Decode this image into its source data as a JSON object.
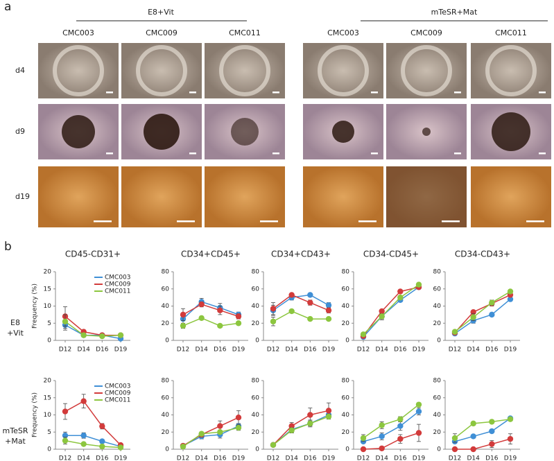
{
  "panel_a": {
    "label": "a",
    "groups": [
      "E8+Vit",
      "mTeSR+Mat"
    ],
    "columns": [
      "CMC003",
      "CMC009",
      "CMC011",
      "CMC003",
      "CMC009",
      "CMC011"
    ],
    "rows": [
      "d4",
      "d9",
      "d19"
    ]
  },
  "panel_b": {
    "label": "b",
    "row_labels": [
      [
        "E8",
        "+Vit"
      ],
      [
        "mTeSR",
        "+Mat"
      ]
    ]
  },
  "chart_data": [
    {
      "type": "line",
      "title": "CD45-CD31+",
      "ylabel": "Frequency (%)",
      "legend": "upper right",
      "categories": [
        "D12",
        "D14",
        "D16",
        "D19"
      ],
      "ylim": [
        0,
        20
      ],
      "yticks": [
        0,
        5,
        10,
        15,
        20
      ],
      "series": [
        {
          "name": "CMC003",
          "color": "#3f8fd6",
          "values": [
            4.5,
            1.5,
            1.5,
            0.5
          ],
          "errors": [
            1.5,
            0.4,
            0.3,
            0.3
          ]
        },
        {
          "name": "CMC009",
          "color": "#d23b3b",
          "values": [
            7,
            2.5,
            1.5,
            1.5
          ],
          "errors": [
            2.8,
            0.5,
            0.3,
            0.3
          ]
        },
        {
          "name": "CMC011",
          "color": "#8cc63f",
          "values": [
            5.5,
            1.5,
            1.2,
            1.5
          ],
          "errors": [
            2,
            0.3,
            0.3,
            0.3
          ]
        }
      ]
    },
    {
      "type": "line",
      "title": "CD34+CD45+",
      "categories": [
        "D12",
        "D14",
        "D16",
        "D19"
      ],
      "ylim": [
        0,
        80
      ],
      "yticks": [
        0,
        20,
        40,
        60,
        80
      ],
      "series": [
        {
          "color": "#3f8fd6",
          "values": [
            25,
            45,
            38,
            30
          ],
          "errors": [
            6,
            4,
            5,
            3
          ]
        },
        {
          "color": "#d23b3b",
          "values": [
            30,
            42,
            35,
            28
          ],
          "errors": [
            7,
            3,
            5,
            3
          ]
        },
        {
          "color": "#8cc63f",
          "values": [
            17,
            26,
            17,
            20
          ],
          "errors": [
            3,
            2,
            2,
            2
          ]
        }
      ]
    },
    {
      "type": "line",
      "title": "CD34+CD43+",
      "categories": [
        "D12",
        "D14",
        "D16",
        "D19"
      ],
      "ylim": [
        0,
        80
      ],
      "yticks": [
        0,
        20,
        40,
        60,
        80
      ],
      "series": [
        {
          "color": "#3f8fd6",
          "values": [
            35,
            50,
            53,
            41
          ],
          "errors": [
            6,
            3,
            2,
            3
          ]
        },
        {
          "color": "#d23b3b",
          "values": [
            37,
            53,
            44,
            35
          ],
          "errors": [
            7,
            2,
            3,
            3
          ]
        },
        {
          "color": "#8cc63f",
          "values": [
            22,
            34,
            25,
            25
          ],
          "errors": [
            5,
            2,
            1,
            1
          ]
        }
      ]
    },
    {
      "type": "line",
      "title": "CD34-CD45+",
      "categories": [
        "D12",
        "D14",
        "D16",
        "D19"
      ],
      "ylim": [
        0,
        80
      ],
      "yticks": [
        0,
        20,
        40,
        60,
        80
      ],
      "series": [
        {
          "color": "#3f8fd6",
          "values": [
            4,
            28,
            47,
            62
          ],
          "errors": [
            1,
            4,
            2,
            2
          ]
        },
        {
          "color": "#d23b3b",
          "values": [
            5,
            34,
            57,
            62
          ],
          "errors": [
            1,
            2,
            2,
            2
          ]
        },
        {
          "color": "#8cc63f",
          "values": [
            7,
            28,
            50,
            65
          ],
          "errors": [
            1,
            3,
            2,
            2
          ]
        }
      ]
    },
    {
      "type": "line",
      "title": "CD34-CD43+",
      "categories": [
        "D12",
        "D14",
        "D16",
        "D19"
      ],
      "ylim": [
        0,
        80
      ],
      "yticks": [
        0,
        20,
        40,
        60,
        80
      ],
      "series": [
        {
          "color": "#3f8fd6",
          "values": [
            8,
            23,
            30,
            48
          ],
          "errors": [
            1,
            3,
            2,
            2
          ]
        },
        {
          "color": "#d23b3b",
          "values": [
            9,
            33,
            43,
            53
          ],
          "errors": [
            1,
            2,
            3,
            2
          ]
        },
        {
          "color": "#8cc63f",
          "values": [
            10,
            27,
            44,
            57
          ],
          "errors": [
            1,
            4,
            3,
            2
          ]
        }
      ]
    },
    {
      "type": "line",
      "ylabel": "Frequency (%)",
      "legend": "upper right",
      "categories": [
        "D12",
        "D14",
        "D16",
        "D19"
      ],
      "ylim": [
        0,
        20
      ],
      "yticks": [
        0,
        5,
        10,
        15,
        20
      ],
      "series": [
        {
          "name": "CMC003",
          "color": "#3f8fd6",
          "values": [
            4,
            4,
            2.3,
            0.8
          ],
          "errors": [
            1,
            0.8,
            0.5,
            0.3
          ]
        },
        {
          "name": "CMC009",
          "color": "#d23b3b",
          "values": [
            11,
            14,
            6.7,
            1.2
          ],
          "errors": [
            2.3,
            2,
            0.8,
            0.3
          ]
        },
        {
          "name": "CMC011",
          "color": "#8cc63f",
          "values": [
            2.5,
            1.5,
            0.8,
            0.5
          ],
          "errors": [
            1,
            0.4,
            0.3,
            0.2
          ]
        }
      ]
    },
    {
      "type": "line",
      "categories": [
        "D12",
        "D14",
        "D16",
        "D19"
      ],
      "ylim": [
        0,
        80
      ],
      "yticks": [
        0,
        20,
        40,
        60,
        80
      ],
      "series": [
        {
          "color": "#3f8fd6",
          "values": [
            4,
            15,
            17,
            27
          ],
          "errors": [
            1,
            3,
            4,
            3
          ]
        },
        {
          "color": "#d23b3b",
          "values": [
            4,
            17,
            27,
            37
          ],
          "errors": [
            1,
            3,
            6,
            8
          ]
        },
        {
          "color": "#8cc63f",
          "values": [
            3,
            18,
            20,
            25
          ],
          "errors": [
            1,
            2,
            2,
            3
          ]
        }
      ]
    },
    {
      "type": "line",
      "categories": [
        "D12",
        "D14",
        "D16",
        "D19"
      ],
      "ylim": [
        0,
        80
      ],
      "yticks": [
        0,
        20,
        40,
        60,
        80
      ],
      "series": [
        {
          "color": "#3f8fd6",
          "values": [
            5,
            23,
            30,
            40
          ],
          "errors": [
            1,
            4,
            4,
            4
          ]
        },
        {
          "color": "#d23b3b",
          "values": [
            5,
            27,
            40,
            45
          ],
          "errors": [
            1,
            4,
            8,
            9
          ]
        },
        {
          "color": "#8cc63f",
          "values": [
            5,
            22,
            30,
            38
          ],
          "errors": [
            1,
            3,
            3,
            3
          ]
        }
      ]
    },
    {
      "type": "line",
      "categories": [
        "D12",
        "D14",
        "D16",
        "D19"
      ],
      "ylim": [
        0,
        80
      ],
      "yticks": [
        0,
        20,
        40,
        60,
        80
      ],
      "series": [
        {
          "color": "#3f8fd6",
          "values": [
            9,
            15,
            27,
            44
          ],
          "errors": [
            2,
            4,
            5,
            4
          ]
        },
        {
          "color": "#d23b3b",
          "values": [
            0,
            1,
            12,
            19
          ],
          "errors": [
            0.5,
            1,
            5,
            10
          ]
        },
        {
          "color": "#8cc63f",
          "values": [
            13,
            28,
            35,
            52
          ],
          "errors": [
            4,
            4,
            3,
            2
          ]
        }
      ]
    },
    {
      "type": "line",
      "categories": [
        "D12",
        "D14",
        "D16",
        "D19"
      ],
      "ylim": [
        0,
        80
      ],
      "yticks": [
        0,
        20,
        40,
        60,
        80
      ],
      "series": [
        {
          "color": "#3f8fd6",
          "values": [
            9,
            15,
            21,
            36
          ],
          "errors": [
            2,
            2,
            2,
            2
          ]
        },
        {
          "color": "#d23b3b",
          "values": [
            0,
            0,
            6,
            12
          ],
          "errors": [
            0.5,
            0.5,
            4,
            6
          ]
        },
        {
          "color": "#8cc63f",
          "values": [
            13,
            30,
            32,
            35
          ],
          "errors": [
            5,
            2,
            2,
            2
          ]
        }
      ]
    }
  ]
}
